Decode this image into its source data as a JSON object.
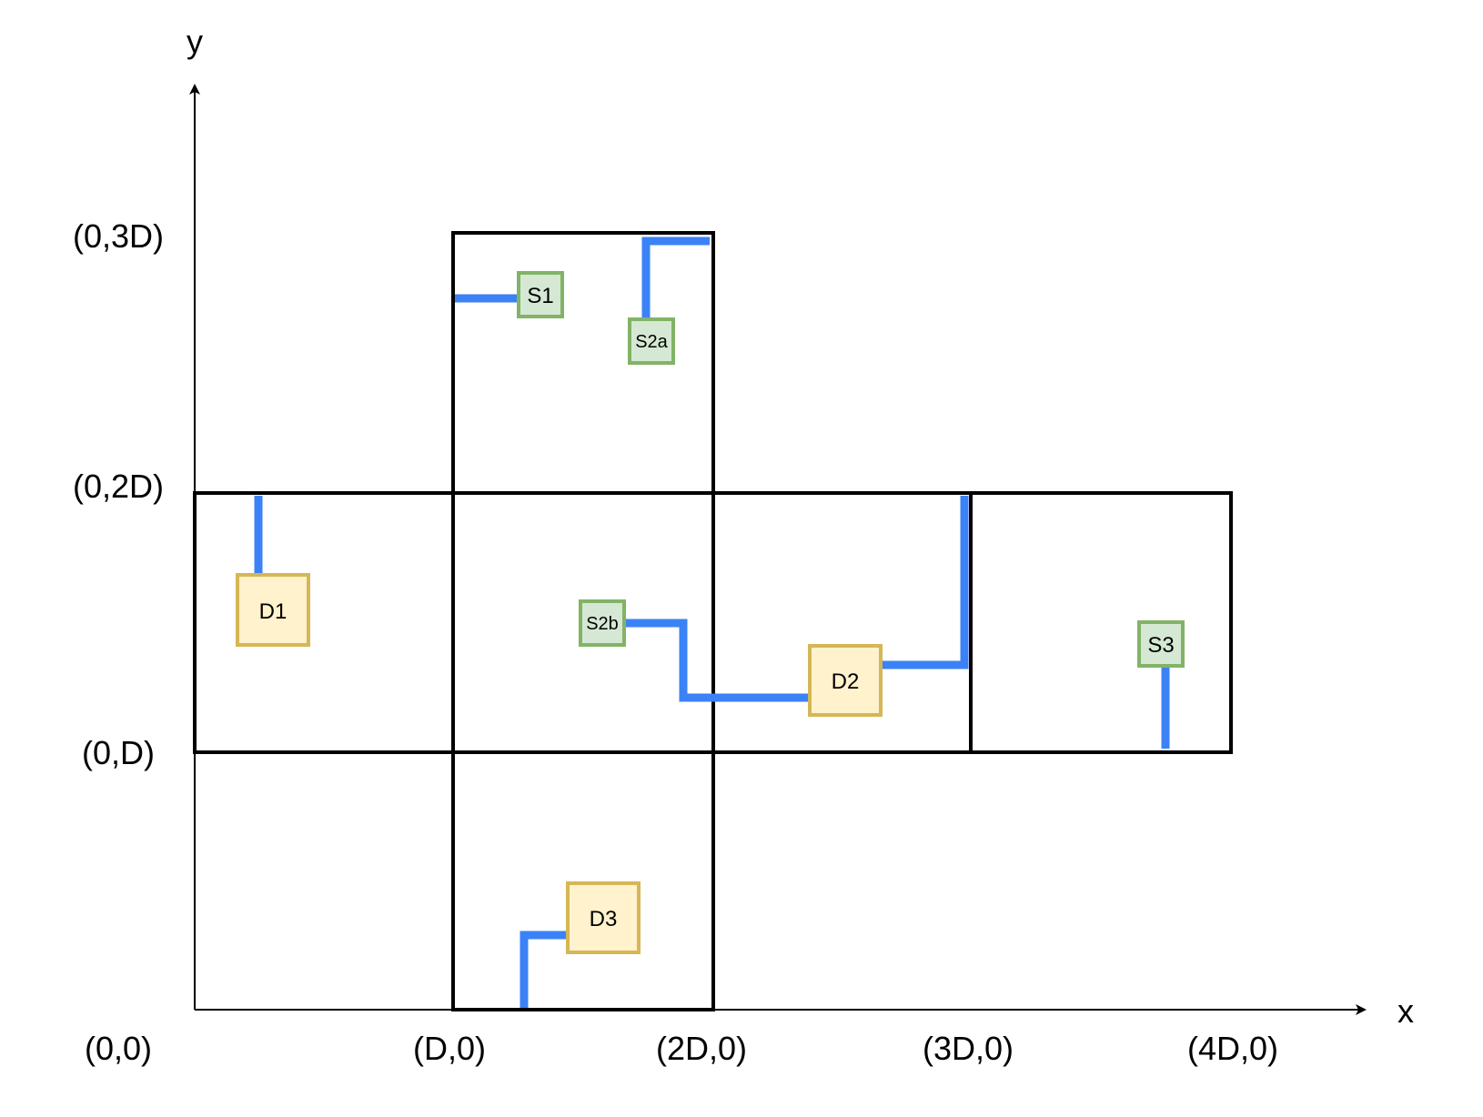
{
  "axes": {
    "x_label": "x",
    "y_label": "y",
    "origin_label": "(0,0)",
    "x_ticks": [
      "(D,0)",
      "(2D,0)",
      "(3D,0)",
      "(4D,0)"
    ],
    "y_ticks": [
      "(0,D)",
      "(0,2D)",
      "(0,3D)"
    ]
  },
  "nodes": [
    {
      "id": "S1",
      "label": "S1",
      "kind": "source"
    },
    {
      "id": "S2a",
      "label": "S2a",
      "kind": "source"
    },
    {
      "id": "S2b",
      "label": "S2b",
      "kind": "source"
    },
    {
      "id": "S3",
      "label": "S3",
      "kind": "source"
    },
    {
      "id": "D1",
      "label": "D1",
      "kind": "destination"
    },
    {
      "id": "D2",
      "label": "D2",
      "kind": "destination"
    },
    {
      "id": "D3",
      "label": "D3",
      "kind": "destination"
    }
  ],
  "colors": {
    "wire": "#3b82f6",
    "source_fill": "#d5e8d4",
    "source_stroke": "#82b366",
    "destination_fill": "#fff2cc",
    "destination_stroke": "#d6b656",
    "grid_stroke": "#000000"
  }
}
